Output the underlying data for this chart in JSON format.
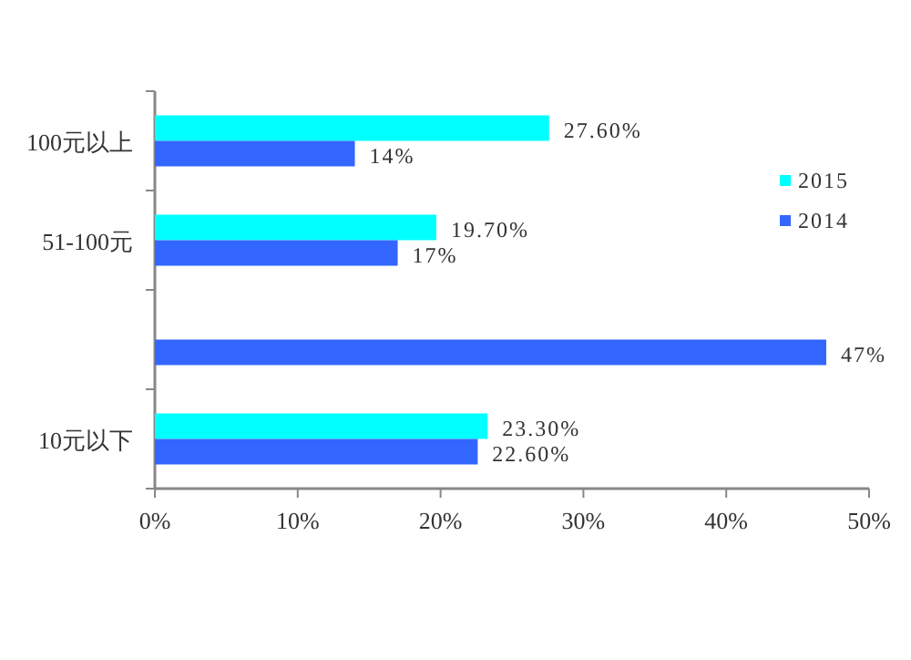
{
  "chart_data": {
    "type": "bar",
    "orientation": "horizontal",
    "categories": [
      "100元以上",
      "51-100元",
      null,
      "10元以下"
    ],
    "series": [
      {
        "name": "2015",
        "color": "#00ffff",
        "values": [
          27.6,
          19.7,
          null,
          23.3
        ],
        "value_labels": [
          "27.60%",
          "19.70%",
          null,
          "23.30%"
        ]
      },
      {
        "name": "2014",
        "color": "#3366ff",
        "values": [
          14,
          17,
          47,
          22.6
        ],
        "value_labels": [
          "14%",
          "17%",
          "47%",
          "22.60%"
        ]
      }
    ],
    "xlim": [
      0,
      50
    ],
    "xticks": [
      {
        "value": 0,
        "label": "0%"
      },
      {
        "value": 10,
        "label": "10%"
      },
      {
        "value": 20,
        "label": "20%"
      },
      {
        "value": 30,
        "label": "30%"
      },
      {
        "value": 40,
        "label": "40%"
      },
      {
        "value": 50,
        "label": "50%"
      }
    ],
    "grid": false,
    "legend": "right"
  }
}
